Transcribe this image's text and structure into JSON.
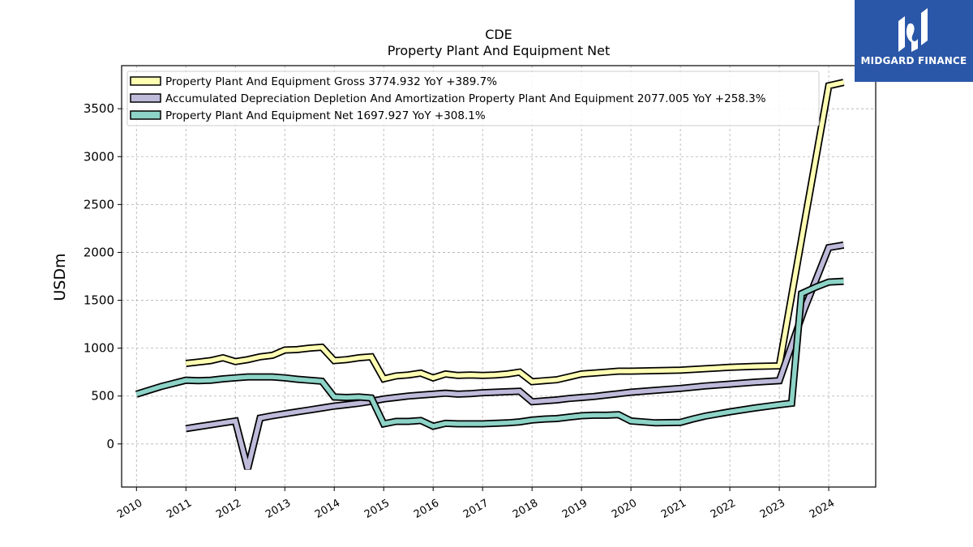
{
  "chart_data": {
    "type": "line",
    "title": "CDE",
    "subtitle": "Property Plant And Equipment Net",
    "ylabel": "USDm",
    "xlabel": "",
    "ylim": [
      -450,
      3950
    ],
    "xlim": [
      2009.7,
      2024.95
    ],
    "yticks": [
      0,
      500,
      1000,
      1500,
      2000,
      2500,
      3000,
      3500
    ],
    "xticks": [
      2010,
      2011,
      2012,
      2013,
      2014,
      2015,
      2016,
      2017,
      2018,
      2019,
      2020,
      2021,
      2022,
      2023,
      2024
    ],
    "grid": true,
    "legend_position": "top-left",
    "series": [
      {
        "name": "Property Plant And Equipment Gross  3774.932 YoY +389.7%",
        "color": "#ffffb3",
        "points": [
          [
            2011.0,
            840
          ],
          [
            2011.25,
            855
          ],
          [
            2011.5,
            870
          ],
          [
            2011.75,
            900
          ],
          [
            2012.0,
            860
          ],
          [
            2012.25,
            880
          ],
          [
            2012.5,
            910
          ],
          [
            2012.75,
            925
          ],
          [
            2013.0,
            980
          ],
          [
            2013.25,
            985
          ],
          [
            2013.5,
            1000
          ],
          [
            2013.75,
            1010
          ],
          [
            2014.0,
            870
          ],
          [
            2014.25,
            880
          ],
          [
            2014.5,
            900
          ],
          [
            2014.75,
            910
          ],
          [
            2015.0,
            680
          ],
          [
            2015.25,
            710
          ],
          [
            2015.5,
            720
          ],
          [
            2015.75,
            740
          ],
          [
            2016.0,
            690
          ],
          [
            2016.25,
            730
          ],
          [
            2016.5,
            715
          ],
          [
            2016.75,
            720
          ],
          [
            2017.0,
            715
          ],
          [
            2017.25,
            720
          ],
          [
            2017.5,
            730
          ],
          [
            2017.75,
            750
          ],
          [
            2018.0,
            650
          ],
          [
            2018.25,
            660
          ],
          [
            2018.5,
            670
          ],
          [
            2018.75,
            700
          ],
          [
            2019.0,
            730
          ],
          [
            2019.25,
            740
          ],
          [
            2019.5,
            750
          ],
          [
            2019.75,
            760
          ],
          [
            2020.0,
            760
          ],
          [
            2020.5,
            765
          ],
          [
            2021.0,
            770
          ],
          [
            2021.5,
            785
          ],
          [
            2022.0,
            800
          ],
          [
            2022.5,
            810
          ],
          [
            2023.0,
            815
          ],
          [
            2023.5,
            2285
          ],
          [
            2024.0,
            3740
          ],
          [
            2024.3,
            3775
          ]
        ]
      },
      {
        "name": "Accumulated Depreciation Depletion And Amortization Property Plant And Equipment  2077.005 YoY +258.3%",
        "color": "#bebada",
        "points": [
          [
            2011.0,
            160
          ],
          [
            2011.25,
            180
          ],
          [
            2011.5,
            200
          ],
          [
            2011.75,
            220
          ],
          [
            2012.0,
            240
          ],
          [
            2012.25,
            -260
          ],
          [
            2012.5,
            270
          ],
          [
            2012.75,
            295
          ],
          [
            2013.0,
            315
          ],
          [
            2013.25,
            335
          ],
          [
            2013.5,
            355
          ],
          [
            2013.75,
            375
          ],
          [
            2014.0,
            395
          ],
          [
            2014.25,
            410
          ],
          [
            2014.5,
            425
          ],
          [
            2014.75,
            445
          ],
          [
            2015.0,
            470
          ],
          [
            2015.25,
            485
          ],
          [
            2015.5,
            500
          ],
          [
            2015.75,
            510
          ],
          [
            2016.0,
            520
          ],
          [
            2016.25,
            530
          ],
          [
            2016.5,
            520
          ],
          [
            2016.75,
            525
          ],
          [
            2017.0,
            535
          ],
          [
            2017.25,
            540
          ],
          [
            2017.5,
            545
          ],
          [
            2017.75,
            550
          ],
          [
            2018.0,
            440
          ],
          [
            2018.25,
            450
          ],
          [
            2018.5,
            460
          ],
          [
            2018.75,
            475
          ],
          [
            2019.0,
            485
          ],
          [
            2019.25,
            495
          ],
          [
            2019.5,
            510
          ],
          [
            2019.75,
            525
          ],
          [
            2020.0,
            540
          ],
          [
            2020.5,
            560
          ],
          [
            2021.0,
            580
          ],
          [
            2021.5,
            605
          ],
          [
            2022.0,
            625
          ],
          [
            2022.5,
            645
          ],
          [
            2023.0,
            660
          ],
          [
            2023.5,
            1400
          ],
          [
            2024.0,
            2050
          ],
          [
            2024.3,
            2077
          ]
        ]
      },
      {
        "name": "Property Plant And Equipment Net  1697.927 YoY +308.1%",
        "color": "#8dd3c7",
        "points": [
          [
            2010.0,
            520
          ],
          [
            2010.5,
            600
          ],
          [
            2011.0,
            665
          ],
          [
            2011.25,
            660
          ],
          [
            2011.5,
            665
          ],
          [
            2011.75,
            680
          ],
          [
            2012.0,
            690
          ],
          [
            2012.25,
            700
          ],
          [
            2012.5,
            700
          ],
          [
            2012.75,
            700
          ],
          [
            2013.0,
            690
          ],
          [
            2013.25,
            675
          ],
          [
            2013.5,
            665
          ],
          [
            2013.75,
            655
          ],
          [
            2014.0,
            490
          ],
          [
            2014.25,
            485
          ],
          [
            2014.5,
            490
          ],
          [
            2014.75,
            480
          ],
          [
            2015.0,
            210
          ],
          [
            2015.25,
            235
          ],
          [
            2015.5,
            235
          ],
          [
            2015.75,
            245
          ],
          [
            2016.0,
            185
          ],
          [
            2016.25,
            215
          ],
          [
            2016.5,
            210
          ],
          [
            2016.75,
            210
          ],
          [
            2017.0,
            210
          ],
          [
            2017.25,
            215
          ],
          [
            2017.5,
            220
          ],
          [
            2017.75,
            230
          ],
          [
            2018.0,
            250
          ],
          [
            2018.25,
            260
          ],
          [
            2018.5,
            265
          ],
          [
            2018.75,
            280
          ],
          [
            2019.0,
            295
          ],
          [
            2019.25,
            300
          ],
          [
            2019.5,
            300
          ],
          [
            2019.75,
            305
          ],
          [
            2020.0,
            240
          ],
          [
            2020.5,
            220
          ],
          [
            2021.0,
            225
          ],
          [
            2021.25,
            260
          ],
          [
            2021.5,
            290
          ],
          [
            2022.0,
            335
          ],
          [
            2022.5,
            375
          ],
          [
            2023.0,
            410
          ],
          [
            2023.25,
            425
          ],
          [
            2023.45,
            1570
          ],
          [
            2023.75,
            1640
          ],
          [
            2024.0,
            1690
          ],
          [
            2024.3,
            1698
          ]
        ]
      }
    ]
  },
  "logo": {
    "text": "MIDGARD FINANCE",
    "background": "#2b57a8"
  }
}
